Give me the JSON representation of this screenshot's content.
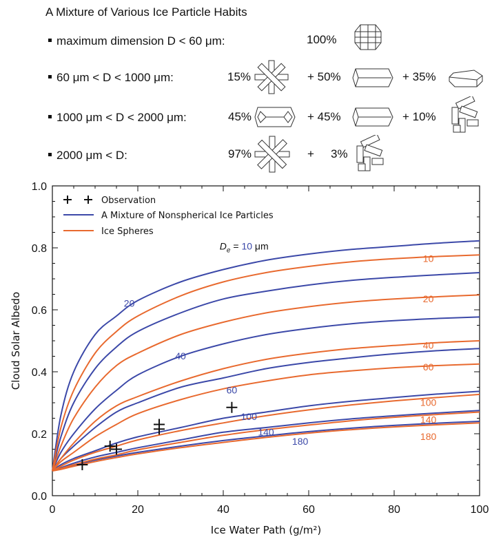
{
  "header": {
    "title": "A Mixture of Various Ice Particle Habits",
    "rows": [
      {
        "label": "maximum dimension D < 60 μm:",
        "parts": [
          {
            "pct": "100%",
            "habit": "droxtal-icon"
          }
        ]
      },
      {
        "label": "60 μm < D < 1000 μm:",
        "parts": [
          {
            "pct": "15%",
            "habit": "bullet-rosette-icon"
          },
          {
            "pct": "+ 50%",
            "habit": "hexagonal-column-icon"
          },
          {
            "pct": "+ 35%",
            "habit": "hexagonal-plate-icon"
          }
        ]
      },
      {
        "label": "1000 μm < D < 2000 μm:",
        "parts": [
          {
            "pct": "45%",
            "habit": "hollow-column-icon"
          },
          {
            "pct": "+ 45%",
            "habit": "hexagonal-column-icon"
          },
          {
            "pct": "+ 10%",
            "habit": "aggregate-icon"
          }
        ]
      },
      {
        "label": "2000 μm < D:",
        "parts": [
          {
            "pct": "97%",
            "habit": "bullet-rosette-icon"
          },
          {
            "pct": "+",
            "habit": ""
          },
          {
            "pct": "3%",
            "habit": "aggregate-icon"
          }
        ]
      }
    ]
  },
  "chart_data": {
    "type": "line",
    "xlabel": "Ice Water Path (g/m²)",
    "ylabel": "Cloud Solar Albedo",
    "xlim": [
      0,
      100
    ],
    "ylim": [
      0,
      1.0
    ],
    "xticks": [
      "0",
      "20",
      "40",
      "60",
      "80",
      "100"
    ],
    "yticks": [
      "0.0",
      "0.2",
      "0.4",
      "0.6",
      "0.8",
      "1.0"
    ],
    "grid": false,
    "legend_position": "top-left",
    "legend": [
      {
        "label": "Observation",
        "marker": "+",
        "color": "#111111"
      },
      {
        "label": "A Mixture of Nonspherical Ice Particles",
        "color": "#3b48a8"
      },
      {
        "label": "Ice Spheres",
        "color": "#e8692e"
      }
    ],
    "x": [
      0,
      2,
      5,
      10,
      15,
      20,
      30,
      40,
      50,
      60,
      70,
      80,
      90,
      100
    ],
    "series": [
      {
        "name": "A Mixture of Nonspherical Ice Particles",
        "De": "10",
        "color": "#3b48a8",
        "values": [
          0.08,
          0.26,
          0.4,
          0.52,
          0.58,
          0.63,
          0.69,
          0.73,
          0.76,
          0.78,
          0.795,
          0.805,
          0.815,
          0.823
        ]
      },
      {
        "name": "A Mixture of Nonspherical Ice Particles",
        "De": "20",
        "color": "#3b48a8",
        "values": [
          0.08,
          0.19,
          0.3,
          0.41,
          0.48,
          0.53,
          0.59,
          0.635,
          0.66,
          0.68,
          0.695,
          0.705,
          0.713,
          0.72
        ]
      },
      {
        "name": "A Mixture of Nonspherical Ice Particles",
        "De": "40",
        "color": "#3b48a8",
        "values": [
          0.08,
          0.14,
          0.2,
          0.28,
          0.34,
          0.39,
          0.45,
          0.49,
          0.52,
          0.54,
          0.555,
          0.565,
          0.572,
          0.577
        ]
      },
      {
        "name": "A Mixture of Nonspherical Ice Particles",
        "De": "60",
        "color": "#3b48a8",
        "values": [
          0.08,
          0.12,
          0.16,
          0.22,
          0.27,
          0.3,
          0.35,
          0.38,
          0.41,
          0.43,
          0.445,
          0.458,
          0.468,
          0.475
        ]
      },
      {
        "name": "A Mixture of Nonspherical Ice Particles",
        "De": "100",
        "color": "#3b48a8",
        "values": [
          0.08,
          0.1,
          0.12,
          0.145,
          0.17,
          0.19,
          0.22,
          0.25,
          0.27,
          0.29,
          0.305,
          0.317,
          0.328,
          0.337
        ]
      },
      {
        "name": "A Mixture of Nonspherical Ice Particles",
        "De": "140",
        "color": "#3b48a8",
        "values": [
          0.08,
          0.09,
          0.105,
          0.125,
          0.14,
          0.155,
          0.18,
          0.205,
          0.22,
          0.235,
          0.248,
          0.258,
          0.267,
          0.275
        ]
      },
      {
        "name": "A Mixture of Nonspherical Ice Particles",
        "De": "180",
        "color": "#3b48a8",
        "values": [
          0.08,
          0.088,
          0.098,
          0.115,
          0.128,
          0.14,
          0.16,
          0.178,
          0.193,
          0.207,
          0.218,
          0.227,
          0.234,
          0.24
        ]
      },
      {
        "name": "Ice Spheres",
        "De": "10",
        "color": "#e8692e",
        "values": [
          0.08,
          0.22,
          0.34,
          0.46,
          0.53,
          0.58,
          0.645,
          0.69,
          0.72,
          0.74,
          0.755,
          0.765,
          0.772,
          0.777
        ]
      },
      {
        "name": "Ice Spheres",
        "De": "20",
        "color": "#e8692e",
        "values": [
          0.08,
          0.16,
          0.25,
          0.35,
          0.42,
          0.46,
          0.52,
          0.56,
          0.59,
          0.61,
          0.625,
          0.635,
          0.642,
          0.648
        ]
      },
      {
        "name": "Ice Spheres",
        "De": "40",
        "color": "#e8692e",
        "values": [
          0.08,
          0.12,
          0.17,
          0.24,
          0.29,
          0.32,
          0.37,
          0.41,
          0.44,
          0.46,
          0.475,
          0.485,
          0.494,
          0.5
        ]
      },
      {
        "name": "Ice Spheres",
        "De": "60",
        "color": "#e8692e",
        "values": [
          0.08,
          0.11,
          0.14,
          0.19,
          0.23,
          0.265,
          0.31,
          0.345,
          0.37,
          0.39,
          0.403,
          0.413,
          0.42,
          0.425
        ]
      },
      {
        "name": "Ice Spheres",
        "De": "100",
        "color": "#e8692e",
        "values": [
          0.08,
          0.095,
          0.115,
          0.14,
          0.16,
          0.18,
          0.21,
          0.235,
          0.258,
          0.277,
          0.293,
          0.306,
          0.317,
          0.327
        ]
      },
      {
        "name": "Ice Spheres",
        "De": "140",
        "color": "#e8692e",
        "values": [
          0.08,
          0.088,
          0.1,
          0.118,
          0.132,
          0.148,
          0.172,
          0.195,
          0.213,
          0.228,
          0.242,
          0.253,
          0.262,
          0.27
        ]
      },
      {
        "name": "Ice Spheres",
        "De": "180",
        "color": "#e8692e",
        "values": [
          0.08,
          0.085,
          0.095,
          0.11,
          0.123,
          0.135,
          0.155,
          0.172,
          0.188,
          0.202,
          0.213,
          0.222,
          0.229,
          0.235
        ]
      }
    ],
    "observations": [
      {
        "x": 7,
        "y": 0.1
      },
      {
        "x": 13.5,
        "y": 0.16
      },
      {
        "x": 15,
        "y": 0.15
      },
      {
        "x": 25,
        "y": 0.215
      },
      {
        "x": 25,
        "y": 0.23
      },
      {
        "x": 42,
        "y": 0.285
      }
    ],
    "annotations": {
      "de_label_prefix": "D",
      "de_label_sub": "e",
      "de_label_mid": " = ",
      "de_label_value": "10",
      "de_label_unit": " μm",
      "blue_labels": [
        {
          "text": "20",
          "x": 18,
          "y": 0.61
        },
        {
          "text": "40",
          "x": 30,
          "y": 0.44
        },
        {
          "text": "60",
          "x": 42,
          "y": 0.33
        },
        {
          "text": "100",
          "x": 46,
          "y": 0.245
        },
        {
          "text": "140",
          "x": 50,
          "y": 0.195
        },
        {
          "text": "180",
          "x": 58,
          "y": 0.165
        }
      ],
      "orange_labels": [
        {
          "text": "10",
          "x": 88,
          "y": 0.755
        },
        {
          "text": "20",
          "x": 88,
          "y": 0.625
        },
        {
          "text": "40",
          "x": 88,
          "y": 0.475
        },
        {
          "text": "60",
          "x": 88,
          "y": 0.405
        },
        {
          "text": "100",
          "x": 88,
          "y": 0.29
        },
        {
          "text": "140",
          "x": 88,
          "y": 0.235
        },
        {
          "text": "180",
          "x": 88,
          "y": 0.18
        }
      ],
      "de_label_pos": {
        "x": 44,
        "y": 0.795
      }
    }
  }
}
